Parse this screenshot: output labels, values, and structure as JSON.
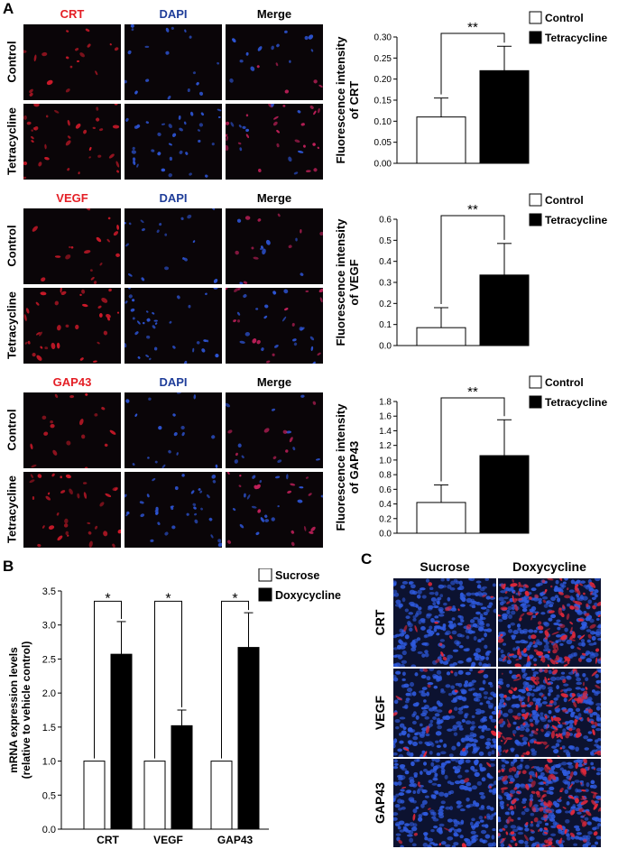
{
  "panels": {
    "a": "A",
    "b": "B",
    "c": "C"
  },
  "panel_a": {
    "groups": [
      {
        "labels": [
          "CRT",
          "DAPI",
          "Merge"
        ],
        "label_colors": [
          "#e41e25",
          "#1f3d99",
          "#000000"
        ],
        "rows": [
          "Control",
          "Tetracycline"
        ]
      },
      {
        "labels": [
          "VEGF",
          "DAPI",
          "Merge"
        ],
        "label_colors": [
          "#e41e25",
          "#1f3d99",
          "#000000"
        ],
        "rows": [
          "Control",
          "Tetracycline"
        ]
      },
      {
        "labels": [
          "GAP43",
          "DAPI",
          "Merge"
        ],
        "label_colors": [
          "#e41e25",
          "#1f3d99",
          "#000000"
        ],
        "rows": [
          "Control",
          "Tetracycline"
        ]
      }
    ]
  },
  "panel_c": {
    "columns": [
      "Sucrose",
      "Doxycycline"
    ],
    "rows": [
      "CRT",
      "VEGF",
      "GAP43"
    ]
  },
  "colors": {
    "red_channel": "#e41e25",
    "blue_channel": "#2e55d6",
    "bar_black": "#000000",
    "bar_white": "#ffffff"
  },
  "chart_data": [
    {
      "type": "bar",
      "ylabel_lines": [
        "Fluorescence intensity",
        "of CRT"
      ],
      "categories": [
        "Control",
        "Tetracycline"
      ],
      "values": [
        0.11,
        0.22
      ],
      "errors": [
        0.045,
        0.058
      ],
      "ylim": [
        0,
        0.3
      ],
      "yticks": [
        "0.00",
        "0.05",
        "0.10",
        "0.15",
        "0.20",
        "0.25",
        "0.30"
      ],
      "legend": [
        "Control",
        "Tetracycline"
      ],
      "significance": "**"
    },
    {
      "type": "bar",
      "ylabel_lines": [
        "Fluorescence intensity",
        "of VEGF"
      ],
      "categories": [
        "Control",
        "Tetracycline"
      ],
      "values": [
        0.085,
        0.335
      ],
      "errors": [
        0.095,
        0.15
      ],
      "ylim": [
        0,
        0.6
      ],
      "yticks": [
        "0.0",
        "0.1",
        "0.2",
        "0.3",
        "0.4",
        "0.5",
        "0.6"
      ],
      "legend": [
        "Control",
        "Tetracycline"
      ],
      "significance": "**"
    },
    {
      "type": "bar",
      "ylabel_lines": [
        "Fluorescence intensity",
        "of GAP43"
      ],
      "categories": [
        "Control",
        "Tetracycline"
      ],
      "values": [
        0.42,
        1.06
      ],
      "errors": [
        0.24,
        0.49
      ],
      "ylim": [
        0,
        1.8
      ],
      "yticks": [
        "0.0",
        "0.2",
        "0.4",
        "0.6",
        "0.8",
        "1.0",
        "1.2",
        "1.4",
        "1.6",
        "1.8"
      ],
      "legend": [
        "Control",
        "Tetracycline"
      ],
      "significance": "**"
    },
    {
      "type": "bar",
      "ylabel_lines": [
        "mRNA expression levels",
        "(relative to vehicle control)"
      ],
      "categories": [
        "CRT",
        "VEGF",
        "GAP43"
      ],
      "series": [
        {
          "name": "Sucrose",
          "values": [
            1.0,
            1.0,
            1.0
          ],
          "errors": [
            0,
            0,
            0
          ]
        },
        {
          "name": "Doxycycline",
          "values": [
            2.57,
            1.52,
            2.67
          ],
          "errors": [
            0.48,
            0.23,
            0.51
          ]
        }
      ],
      "ylim": [
        0,
        3.5
      ],
      "yticks": [
        "0.0",
        "0.5",
        "1.0",
        "1.5",
        "2.0",
        "2.5",
        "3.0",
        "3.5"
      ],
      "legend": [
        "Sucrose",
        "Doxycycline"
      ],
      "significance": [
        "*",
        "*",
        "*"
      ]
    }
  ]
}
